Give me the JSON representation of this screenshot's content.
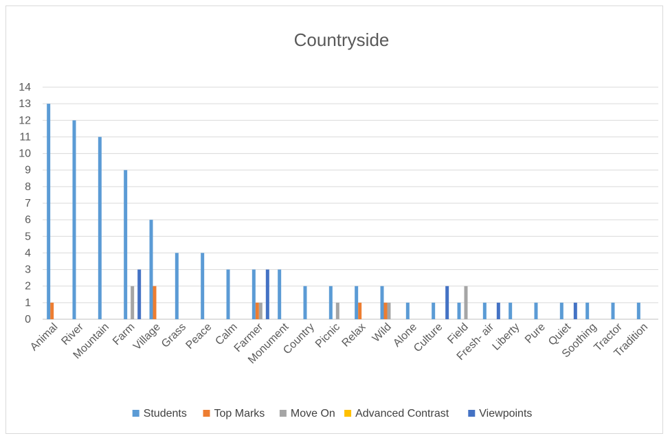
{
  "chart_data": {
    "type": "bar",
    "title": "Countryside",
    "xlabel": "",
    "ylabel": "",
    "ylim": [
      0,
      14
    ],
    "yticks": [
      0,
      1,
      2,
      3,
      4,
      5,
      6,
      7,
      8,
      9,
      10,
      11,
      12,
      13,
      14
    ],
    "grid": true,
    "legend_position": "bottom",
    "categories": [
      "Animal",
      "River",
      "Mountain",
      "Farm",
      "Village",
      "Grass",
      "Peace",
      "Calm",
      "Farmer",
      "Monument",
      "Country",
      "Picnic",
      "Relax",
      "Wild",
      "Alone",
      "Culture",
      "Field",
      "Fresh- air",
      "Liberty",
      "Pure",
      "Quiet",
      "Soothing",
      "Tractor",
      "Tradition"
    ],
    "series": [
      {
        "name": "Students",
        "color": "#5b9bd5",
        "values": [
          13,
          12,
          11,
          9,
          6,
          4,
          4,
          3,
          3,
          3,
          2,
          2,
          2,
          2,
          1,
          1,
          1,
          1,
          1,
          1,
          1,
          1,
          1,
          1
        ]
      },
      {
        "name": "Top Marks",
        "color": "#ed7d31",
        "values": [
          1,
          0,
          0,
          0,
          2,
          0,
          0,
          0,
          1,
          0,
          0,
          0,
          1,
          1,
          0,
          0,
          0,
          0,
          0,
          0,
          0,
          0,
          0,
          0
        ]
      },
      {
        "name": "Move On",
        "color": "#a5a5a5",
        "values": [
          0,
          0,
          0,
          2,
          0,
          0,
          0,
          0,
          1,
          0,
          0,
          1,
          0,
          1,
          0,
          0,
          2,
          0,
          0,
          0,
          0,
          0,
          0,
          0
        ]
      },
      {
        "name": "Advanced Contrast",
        "color": "#ffc000",
        "values": [
          0,
          0,
          0,
          0,
          0,
          0,
          0,
          0,
          0,
          0,
          0,
          0,
          0,
          0,
          0,
          0,
          0,
          0,
          0,
          0,
          0,
          0,
          0,
          0
        ]
      },
      {
        "name": "Viewpoints",
        "color": "#4472c4",
        "values": [
          0,
          0,
          0,
          3,
          0,
          0,
          0,
          0,
          3,
          0,
          0,
          0,
          0,
          0,
          0,
          2,
          0,
          1,
          0,
          0,
          1,
          0,
          0,
          0
        ]
      }
    ]
  }
}
